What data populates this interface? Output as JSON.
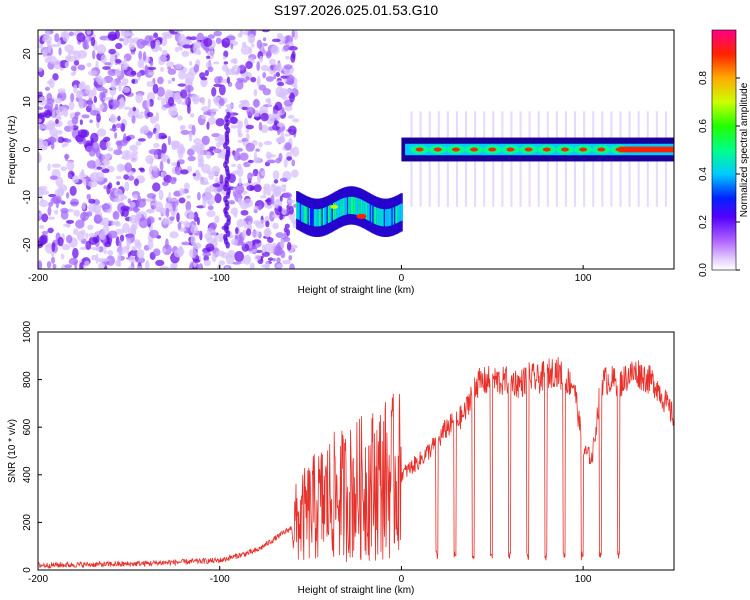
{
  "title": "S197.2026.025.01.53.G10",
  "chart_data": [
    {
      "type": "heatmap",
      "title": "S197.2026.025.01.53.G10",
      "xlabel": "Height of straight line (km)",
      "ylabel": "Frequency (Hz)",
      "xlim": [
        -200,
        150
      ],
      "ylim": [
        -25,
        25
      ],
      "xticks": [
        -200,
        -100,
        0,
        100
      ],
      "yticks": [
        -20,
        -10,
        0,
        10,
        20
      ],
      "colorbar": {
        "label": "Normalized spectral amplitude",
        "range": [
          0,
          1
        ],
        "ticks": [
          0.0,
          0.2,
          0.4,
          0.6,
          0.8
        ],
        "tick_labels": [
          "0.0",
          "0.2",
          "0.4",
          "0.6",
          "0.8"
        ]
      },
      "regions": [
        {
          "x_range": [
            -200,
            -58
          ],
          "freq_range": [
            -25,
            25
          ],
          "amplitude": 0.1,
          "pattern": "scattered noise"
        },
        {
          "x_range": [
            -58,
            0
          ],
          "freq_center": -13,
          "amplitude": 0.7,
          "pattern": "band"
        },
        {
          "x_range": [
            0,
            150
          ],
          "freq_center": 0,
          "amplitude": 0.95,
          "pattern": "band with periodic peaks every 10 km"
        }
      ]
    },
    {
      "type": "line",
      "xlabel": "Height of straight line (km)",
      "ylabel": "SNR (10 * v/v)",
      "xlim": [
        -200,
        150
      ],
      "ylim": [
        0,
        1000
      ],
      "xticks": [
        -200,
        -100,
        0,
        100
      ],
      "yticks": [
        0,
        200,
        400,
        600,
        800,
        1000
      ],
      "color": "#e8302a",
      "series": [
        {
          "x": [
            -200,
            -150,
            -100,
            -80,
            -70,
            -60,
            -50,
            -40,
            -30,
            -20,
            -10,
            0,
            10,
            15,
            20,
            25,
            30,
            35,
            40,
            45,
            50,
            55,
            60,
            65,
            70,
            75,
            80,
            85,
            90,
            95,
            100,
            105,
            110,
            115,
            120,
            125,
            130,
            140,
            150
          ],
          "values": [
            20,
            25,
            40,
            80,
            130,
            180,
            250,
            300,
            320,
            350,
            380,
            400,
            460,
            500,
            540,
            600,
            620,
            660,
            780,
            790,
            800,
            790,
            800,
            780,
            810,
            800,
            820,
            840,
            800,
            780,
            500,
            470,
            790,
            800,
            780,
            820,
            830,
            780,
            640
          ]
        }
      ]
    }
  ]
}
